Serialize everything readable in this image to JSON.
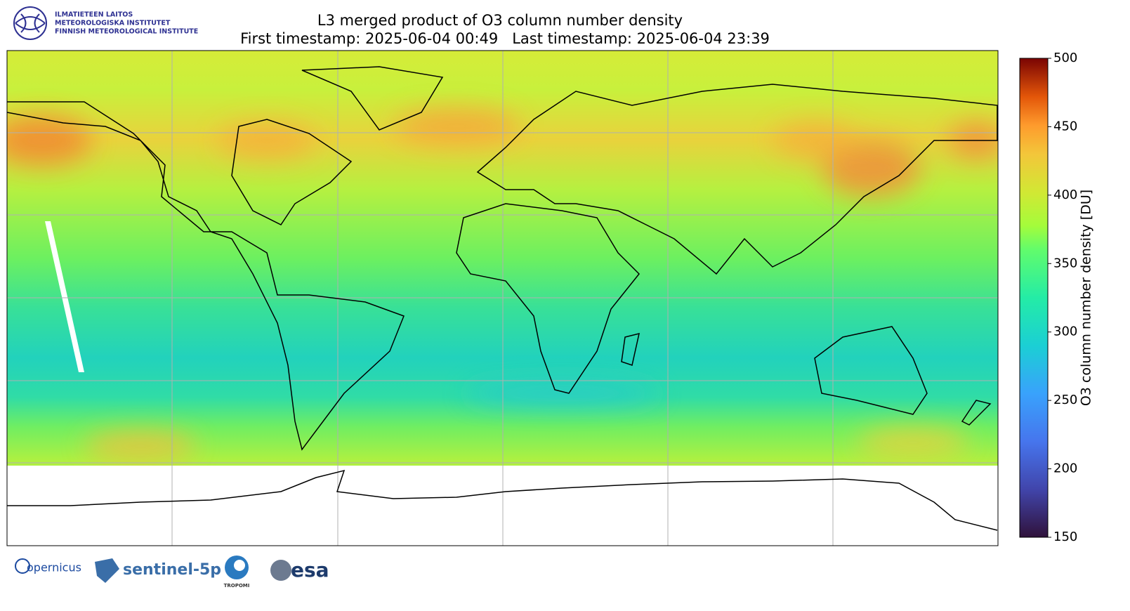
{
  "header": {
    "institute": [
      "ILMATIETEEN LAITOS",
      "METEOROLOGISKA INSTITUTET",
      "FINNISH METEOROLOGICAL INSTITUTE"
    ],
    "title": "L3 merged product of O3 column number density",
    "subtitle": "First timestamp: 2025-06-04 00:49   Last timestamp: 2025-06-04 23:39"
  },
  "colorbar": {
    "label": "O3 column number density [DU]",
    "lim": [
      150,
      500
    ],
    "ticks": [
      150,
      200,
      250,
      300,
      350,
      400,
      450,
      500
    ]
  },
  "footer": {
    "logos": [
      "opernicus",
      "sentinel-5p",
      "TROPOMI",
      "esa"
    ]
  }
}
